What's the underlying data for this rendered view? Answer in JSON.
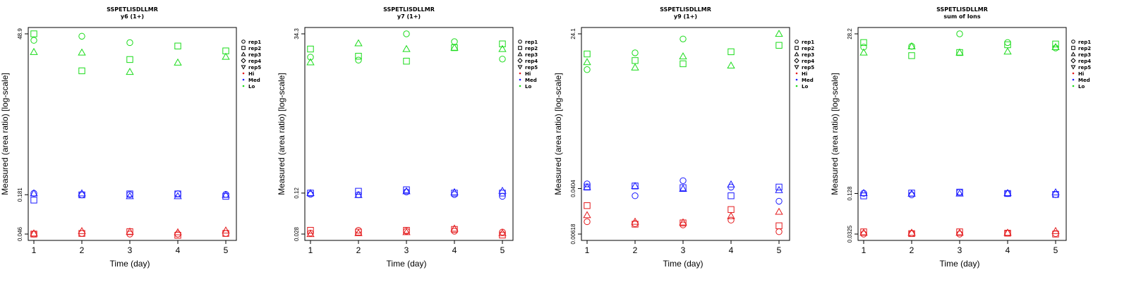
{
  "figure": {
    "peptide": "SSPETLISDLLMR",
    "xlabel": "Time (day)",
    "ylabel": "Measured (area ratio) [log-scale]",
    "legend": {
      "shapes": [
        {
          "label": "rep1",
          "marker": "circle"
        },
        {
          "label": "rep2",
          "marker": "square"
        },
        {
          "label": "rep3",
          "marker": "triangle-up"
        },
        {
          "label": "rep4",
          "marker": "diamond"
        },
        {
          "label": "rep5",
          "marker": "triangle-down"
        }
      ],
      "colors": [
        {
          "label": "Hi",
          "color": "#e41a1c"
        },
        {
          "label": "Med",
          "color": "#1a1aff"
        },
        {
          "label": "Lo",
          "color": "#1adb1a"
        }
      ]
    }
  },
  "chart_data": [
    {
      "type": "scatter",
      "title": "SSPETLISDLLMR",
      "subtitle": "y6 (1+)",
      "xlabel": "Time (day)",
      "ylabel": "Measured (area ratio) [log-scale]",
      "log_y": true,
      "ylim": [
        0.046,
        48.9
      ],
      "yticks": [
        "0.046",
        "0.181",
        "48.9"
      ],
      "x": [
        1,
        2,
        3,
        4,
        5
      ],
      "series": [
        {
          "name": "Lo",
          "replicate": "rep1",
          "values": [
            39,
            45,
            36,
            null,
            null
          ]
        },
        {
          "name": "Lo",
          "replicate": "rep2",
          "values": [
            48.9,
            13.5,
            20,
            32,
            27
          ]
        },
        {
          "name": "Lo",
          "replicate": "rep3",
          "values": [
            26,
            25.5,
            13,
            18,
            22
          ]
        },
        {
          "name": "Med",
          "replicate": "rep1",
          "values": [
            0.19,
            0.18,
            0.182,
            0.187,
            0.183
          ]
        },
        {
          "name": "Med",
          "replicate": "rep2",
          "values": [
            0.15,
            0.18,
            0.186,
            0.186,
            0.171
          ]
        },
        {
          "name": "Med",
          "replicate": "rep3",
          "values": [
            0.19,
            0.19,
            0.172,
            0.172,
            0.18
          ]
        },
        {
          "name": "Hi",
          "replicate": "rep1",
          "values": [
            0.046,
            0.047,
            0.046,
            0.046,
            0.047
          ]
        },
        {
          "name": "Hi",
          "replicate": "rep2",
          "values": [
            0.046,
            0.047,
            0.05,
            0.044,
            0.047
          ]
        },
        {
          "name": "Hi",
          "replicate": "rep3",
          "values": [
            0.047,
            0.051,
            0.05,
            0.049,
            0.052
          ]
        }
      ]
    },
    {
      "type": "scatter",
      "title": "SSPETLISDLLMR",
      "subtitle": "y7 (1+)",
      "xlabel": "Time (day)",
      "ylabel": "Measured (area ratio) [log-scale]",
      "log_y": true,
      "ylim": [
        0.028,
        34.3
      ],
      "yticks": [
        "0.028",
        "0.12",
        "34.3"
      ],
      "x": [
        1,
        2,
        3,
        4,
        5
      ],
      "series": [
        {
          "name": "Lo",
          "replicate": "rep1",
          "values": [
            15,
            13.5,
            34.3,
            26,
            14
          ]
        },
        {
          "name": "Lo",
          "replicate": "rep2",
          "values": [
            20,
            15.5,
            13,
            21,
            24
          ]
        },
        {
          "name": "Lo",
          "replicate": "rep3",
          "values": [
            12.5,
            24.5,
            20,
            21,
            20
          ]
        },
        {
          "name": "Med",
          "replicate": "rep1",
          "values": [
            0.115,
            0.113,
            0.125,
            0.114,
            0.107
          ]
        },
        {
          "name": "Med",
          "replicate": "rep2",
          "values": [
            0.12,
            0.128,
            0.135,
            0.12,
            0.12
          ]
        },
        {
          "name": "Med",
          "replicate": "rep3",
          "values": [
            0.12,
            0.112,
            0.128,
            0.124,
            0.13
          ]
        },
        {
          "name": "Hi",
          "replicate": "rep1",
          "values": [
            0.029,
            0.032,
            0.031,
            0.031,
            0.03
          ]
        },
        {
          "name": "Hi",
          "replicate": "rep2",
          "values": [
            0.032,
            0.03,
            0.032,
            0.033,
            0.027
          ]
        },
        {
          "name": "Hi",
          "replicate": "rep3",
          "values": [
            0.028,
            0.029,
            0.03,
            0.034,
            0.029
          ]
        }
      ]
    },
    {
      "type": "scatter",
      "title": "SSPETLISDLLMR",
      "subtitle": "y9 (1+)",
      "xlabel": "Time (day)",
      "ylabel": "Measured (area ratio) [log-scale]",
      "log_y": true,
      "ylim": [
        0.00618,
        24.1
      ],
      "yticks": [
        "0.00618",
        "0.0404",
        "24.1"
      ],
      "x": [
        1,
        2,
        3,
        4,
        5
      ],
      "series": [
        {
          "name": "Lo",
          "replicate": "rep1",
          "values": [
            5.5,
            11,
            19.5,
            null,
            null
          ]
        },
        {
          "name": "Lo",
          "replicate": "rep2",
          "values": [
            10.5,
            8,
            7,
            11.5,
            15
          ]
        },
        {
          "name": "Lo",
          "replicate": "rep3",
          "values": [
            7.5,
            6,
            9.5,
            6.5,
            24.1
          ]
        },
        {
          "name": "Med",
          "replicate": "rep1",
          "values": [
            0.049,
            0.03,
            0.056,
            0.043,
            0.024
          ]
        },
        {
          "name": "Med",
          "replicate": "rep2",
          "values": [
            0.043,
            0.045,
            0.042,
            0.03,
            0.043
          ]
        },
        {
          "name": "Med",
          "replicate": "rep3",
          "values": [
            0.043,
            0.045,
            0.04,
            0.048,
            0.038
          ]
        },
        {
          "name": "Hi",
          "replicate": "rep1",
          "values": [
            0.0103,
            0.0095,
            0.009,
            0.011,
            0.0068
          ]
        },
        {
          "name": "Hi",
          "replicate": "rep2",
          "values": [
            0.02,
            0.0093,
            0.0098,
            0.017,
            0.0087
          ]
        },
        {
          "name": "Hi",
          "replicate": "rep3",
          "values": [
            0.0135,
            0.0103,
            0.01,
            0.013,
            0.0155
          ]
        }
      ]
    },
    {
      "type": "scatter",
      "title": "SSPETLISDLLMR",
      "subtitle": "sum of Ions",
      "xlabel": "Time (day)",
      "ylabel": "Measured (area ratio) [log-scale]",
      "log_y": true,
      "ylim": [
        0.0325,
        28.2
      ],
      "yticks": [
        "0.0325",
        "0.128",
        "28.2"
      ],
      "x": [
        1,
        2,
        3,
        4,
        5
      ],
      "series": [
        {
          "name": "Lo",
          "replicate": "rep1",
          "values": [
            18,
            18.5,
            28.2,
            21,
            17.5
          ]
        },
        {
          "name": "Lo",
          "replicate": "rep2",
          "values": [
            21,
            13.5,
            15,
            19.5,
            20
          ]
        },
        {
          "name": "Lo",
          "replicate": "rep3",
          "values": [
            15,
            18.5,
            15,
            15.5,
            18
          ]
        },
        {
          "name": "Med",
          "replicate": "rep1",
          "values": [
            0.129,
            0.122,
            0.134,
            0.128,
            0.123
          ]
        },
        {
          "name": "Med",
          "replicate": "rep2",
          "values": [
            0.118,
            0.13,
            0.134,
            0.128,
            0.124
          ]
        },
        {
          "name": "Med",
          "replicate": "rep3",
          "values": [
            0.13,
            0.127,
            0.128,
            0.13,
            0.133
          ]
        },
        {
          "name": "Hi",
          "replicate": "rep1",
          "values": [
            0.0325,
            0.033,
            0.0325,
            0.0335,
            0.033
          ]
        },
        {
          "name": "Hi",
          "replicate": "rep2",
          "values": [
            0.035,
            0.033,
            0.035,
            0.0335,
            0.0325
          ]
        },
        {
          "name": "Hi",
          "replicate": "rep3",
          "values": [
            0.034,
            0.034,
            0.034,
            0.034,
            0.036
          ]
        }
      ]
    }
  ]
}
